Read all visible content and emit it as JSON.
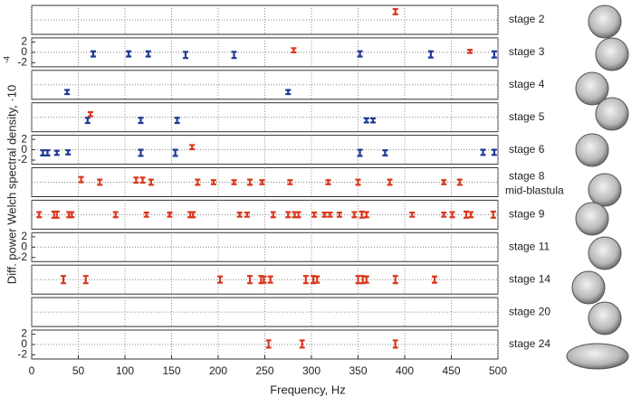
{
  "chart_data": {
    "type": "errorbar",
    "xlabel": "Frequency, Hz",
    "ylabel": "Diff. power Welch spectral density, ·10",
    "ylabel_exponent": "-4",
    "xlim": [
      0,
      500
    ],
    "xticks": [
      0,
      50,
      100,
      150,
      200,
      250,
      300,
      350,
      400,
      450,
      500
    ],
    "ylim": [
      -2.8,
      2.8
    ],
    "yticks": [
      -2,
      0,
      2
    ],
    "grid": true,
    "panels": [
      {
        "label": "stage 2",
        "yticklabels": false,
        "series": [
          {
            "color": "#d9381e",
            "x": [
              390
            ],
            "values": [
              1.6
            ],
            "errors": [
              0.5
            ]
          }
        ]
      },
      {
        "label": "stage 3",
        "yticklabels": true,
        "series": [
          {
            "color": "#1f3a93",
            "x": [
              66,
              104,
              125,
              165,
              217,
              352,
              428,
              496
            ],
            "values": [
              -0.3,
              -0.3,
              -0.3,
              -0.5,
              -0.5,
              -0.3,
              -0.4,
              -0.4
            ],
            "errors": [
              0.5,
              0.5,
              0.5,
              0.6,
              0.6,
              0.5,
              0.6,
              0.6
            ]
          },
          {
            "color": "#d9381e",
            "x": [
              281,
              470
            ],
            "values": [
              0.4,
              0.2
            ],
            "errors": [
              0.4,
              0.3
            ]
          }
        ]
      },
      {
        "label": "stage 4",
        "yticklabels": false,
        "series": [
          {
            "color": "#1f3a93",
            "x": [
              38,
              275
            ],
            "values": [
              -1.4,
              -1.4
            ],
            "errors": [
              0.4,
              0.4
            ]
          }
        ]
      },
      {
        "label": "stage 5",
        "yticklabels": false,
        "series": [
          {
            "color": "#1f3a93",
            "x": [
              60,
              117,
              156,
              359,
              366
            ],
            "values": [
              -0.6,
              -0.6,
              -0.6,
              -0.6,
              -0.6
            ],
            "errors": [
              0.5,
              0.5,
              0.5,
              0.4,
              0.4
            ]
          },
          {
            "color": "#d9381e",
            "x": [
              63
            ],
            "values": [
              0.6
            ],
            "errors": [
              0.4
            ]
          }
        ]
      },
      {
        "label": "stage 6",
        "yticklabels": true,
        "series": [
          {
            "color": "#1f3a93",
            "x": [
              12,
              17,
              27,
              39,
              117,
              154,
              352,
              379,
              484,
              496
            ],
            "values": [
              -0.6,
              -0.6,
              -0.6,
              -0.5,
              -0.6,
              -0.6,
              -0.6,
              -0.6,
              -0.5,
              -0.5
            ],
            "errors": [
              0.5,
              0.5,
              0.4,
              0.4,
              0.6,
              0.6,
              0.6,
              0.5,
              0.5,
              0.5
            ]
          },
          {
            "color": "#d9381e",
            "x": [
              172
            ],
            "values": [
              0.5
            ],
            "errors": [
              0.4
            ]
          }
        ]
      },
      {
        "label": "stage 8",
        "sublabel": "mid-blastula",
        "yticklabels": false,
        "series": [
          {
            "color": "#d9381e",
            "x": [
              53,
              73,
              112,
              119,
              128,
              178,
              195,
              217,
              234,
              247,
              277,
              318,
              350,
              384,
              442,
              459
            ],
            "values": [
              0.5,
              0,
              0.4,
              0.4,
              0,
              0,
              0,
              0,
              0,
              0,
              0,
              0,
              0,
              0,
              0,
              0
            ],
            "errors": [
              0.5,
              0.5,
              0.5,
              0.5,
              0.5,
              0.5,
              0.4,
              0.4,
              0.5,
              0.4,
              0.4,
              0.4,
              0.5,
              0.5,
              0.4,
              0.5
            ]
          }
        ]
      },
      {
        "label": "stage 9",
        "yticklabels": false,
        "series": [
          {
            "color": "#d9381e",
            "x": [
              8,
              24,
              27,
              40,
              43,
              90,
              123,
              148,
              170,
              173,
              223,
              231,
              259,
              275,
              282,
              286,
              303,
              314,
              320,
              330,
              346,
              354,
              359,
              408,
              442,
              451,
              466,
              471,
              495
            ],
            "values": [
              0,
              0,
              0,
              0,
              0,
              0,
              0,
              0,
              0,
              0,
              0,
              0,
              0,
              0,
              0,
              0,
              0,
              0,
              0,
              0,
              0,
              0,
              0,
              0,
              0,
              0,
              0,
              0,
              0
            ],
            "errors": [
              0.5,
              0.6,
              0.6,
              0.5,
              0.5,
              0.5,
              0.4,
              0.4,
              0.5,
              0.5,
              0.4,
              0.4,
              0.5,
              0.5,
              0.5,
              0.5,
              0.4,
              0.4,
              0.4,
              0.4,
              0.5,
              0.6,
              0.5,
              0.4,
              0.4,
              0.5,
              0.6,
              0.5,
              0.6
            ]
          }
        ]
      },
      {
        "label": "stage 11",
        "yticklabels": true,
        "series": []
      },
      {
        "label": "stage 14",
        "yticklabels": false,
        "series": [
          {
            "color": "#d9381e",
            "x": [
              34,
              58,
              202,
              234,
              246,
              249,
              256,
              294,
              302,
              306,
              350,
              355,
              359,
              390,
              432
            ],
            "values": [
              0,
              0,
              0,
              0,
              0,
              0,
              0,
              0,
              0,
              0,
              0,
              0,
              0,
              0,
              0
            ],
            "errors": [
              0.7,
              0.7,
              0.6,
              0.7,
              0.7,
              0.6,
              0.6,
              0.7,
              0.7,
              0.6,
              0.7,
              0.7,
              0.6,
              0.7,
              0.6
            ]
          }
        ]
      },
      {
        "label": "stage 20",
        "yticklabels": false,
        "series": []
      },
      {
        "label": "stage 24",
        "yticklabels": true,
        "series": [
          {
            "color": "#d9381e",
            "x": [
              254,
              290,
              390
            ],
            "values": [
              0.1,
              0.1,
              0.1
            ],
            "errors": [
              0.7,
              0.7,
              0.7
            ]
          }
        ]
      }
    ]
  }
}
